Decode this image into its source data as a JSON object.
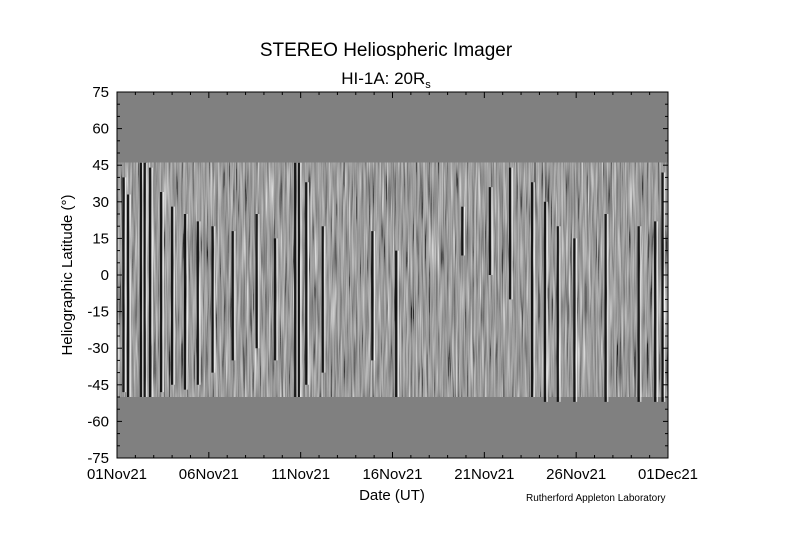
{
  "chart_data": {
    "type": "heatmap",
    "title": "STEREO Heliospheric Imager",
    "subtitle_main": "HI-1A: 20R",
    "subtitle_sub": "s",
    "xlabel": "Date (UT)",
    "ylabel": "Heliographic Latitude (°)",
    "credit": "Rutherford Appleton Laboratory",
    "x_ticks": [
      "01Nov21",
      "06Nov21",
      "11Nov21",
      "16Nov21",
      "21Nov21",
      "26Nov21",
      "01Dec21"
    ],
    "x_tick_days": [
      0,
      5,
      10,
      15,
      20,
      25,
      30
    ],
    "xlim_days": [
      0,
      30
    ],
    "y_ticks": [
      75,
      60,
      45,
      30,
      15,
      0,
      -15,
      -30,
      -45,
      -60,
      -75
    ],
    "ylim": [
      -75,
      75
    ],
    "data_coverage_latitude": [
      -50,
      46
    ],
    "colors": {
      "no_data_fill": "#808080",
      "background": "#ffffff",
      "axis": "#000000"
    },
    "strong_features": [
      {
        "day": 0.35,
        "lat_top": 40,
        "lat_bottom": -48
      },
      {
        "day": 0.6,
        "lat_top": 33,
        "lat_bottom": -50
      },
      {
        "day": 1.3,
        "lat_top": 46,
        "lat_bottom": -50
      },
      {
        "day": 1.5,
        "lat_top": 46,
        "lat_bottom": -50
      },
      {
        "day": 1.8,
        "lat_top": 44,
        "lat_bottom": -50
      },
      {
        "day": 2.4,
        "lat_top": 34,
        "lat_bottom": -48
      },
      {
        "day": 3.0,
        "lat_top": 28,
        "lat_bottom": -45
      },
      {
        "day": 3.7,
        "lat_top": 25,
        "lat_bottom": -47
      },
      {
        "day": 4.4,
        "lat_top": 22,
        "lat_bottom": -45
      },
      {
        "day": 5.2,
        "lat_top": 20,
        "lat_bottom": -40
      },
      {
        "day": 6.3,
        "lat_top": 18,
        "lat_bottom": -35
      },
      {
        "day": 7.6,
        "lat_top": 25,
        "lat_bottom": -30
      },
      {
        "day": 8.6,
        "lat_top": 15,
        "lat_bottom": -35
      },
      {
        "day": 9.7,
        "lat_top": 46,
        "lat_bottom": -50
      },
      {
        "day": 9.9,
        "lat_top": 46,
        "lat_bottom": -50
      },
      {
        "day": 10.3,
        "lat_top": 38,
        "lat_bottom": -45
      },
      {
        "day": 11.2,
        "lat_top": 20,
        "lat_bottom": -40
      },
      {
        "day": 13.9,
        "lat_top": 18,
        "lat_bottom": -35
      },
      {
        "day": 15.2,
        "lat_top": 10,
        "lat_bottom": -50
      },
      {
        "day": 18.8,
        "lat_top": 28,
        "lat_bottom": 8
      },
      {
        "day": 20.3,
        "lat_top": 36,
        "lat_bottom": 0
      },
      {
        "day": 21.4,
        "lat_top": 44,
        "lat_bottom": -10
      },
      {
        "day": 22.6,
        "lat_top": 38,
        "lat_bottom": -50
      },
      {
        "day": 23.3,
        "lat_top": 30,
        "lat_bottom": -52
      },
      {
        "day": 24.0,
        "lat_top": 20,
        "lat_bottom": -52
      },
      {
        "day": 24.9,
        "lat_top": 15,
        "lat_bottom": -52
      },
      {
        "day": 26.6,
        "lat_top": 25,
        "lat_bottom": -52
      },
      {
        "day": 28.4,
        "lat_top": 20,
        "lat_bottom": -52
      },
      {
        "day": 29.3,
        "lat_top": 22,
        "lat_bottom": -52
      },
      {
        "day": 29.7,
        "lat_top": 42,
        "lat_bottom": -52
      }
    ]
  }
}
